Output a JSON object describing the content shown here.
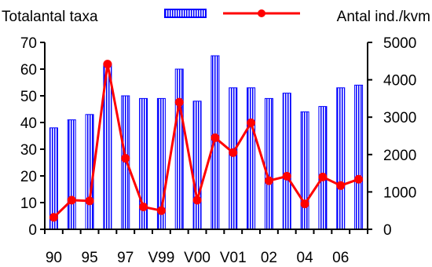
{
  "chart_data": {
    "type": "bar",
    "categories": [
      "90",
      "",
      "95",
      "",
      "97",
      "",
      "V99",
      "",
      "V00",
      "",
      "V01",
      "",
      "02",
      "",
      "04",
      "",
      "06",
      ""
    ],
    "series": [
      {
        "name": "Totalantal taxa",
        "type": "bar",
        "axis": "left",
        "color": "#0000FF",
        "values": [
          38,
          41,
          43,
          62,
          50,
          49,
          49,
          60,
          48,
          65,
          53,
          53,
          49,
          51,
          44,
          46,
          53,
          54
        ]
      },
      {
        "name": "Antal ind./kvm",
        "type": "line",
        "axis": "right",
        "color": "#FF0000",
        "values": [
          320,
          780,
          760,
          4420,
          1900,
          600,
          500,
          3400,
          780,
          2450,
          2050,
          2850,
          1300,
          1420,
          680,
          1400,
          1170,
          1340
        ]
      }
    ],
    "y_left": {
      "min": 0,
      "max": 70,
      "ticks": [
        0,
        10,
        20,
        30,
        40,
        50,
        60,
        70
      ]
    },
    "y_right": {
      "min": 0,
      "max": 5000,
      "ticks": [
        0,
        1000,
        2000,
        3000,
        4000,
        5000
      ]
    },
    "legend_position": "top",
    "grid": false
  }
}
